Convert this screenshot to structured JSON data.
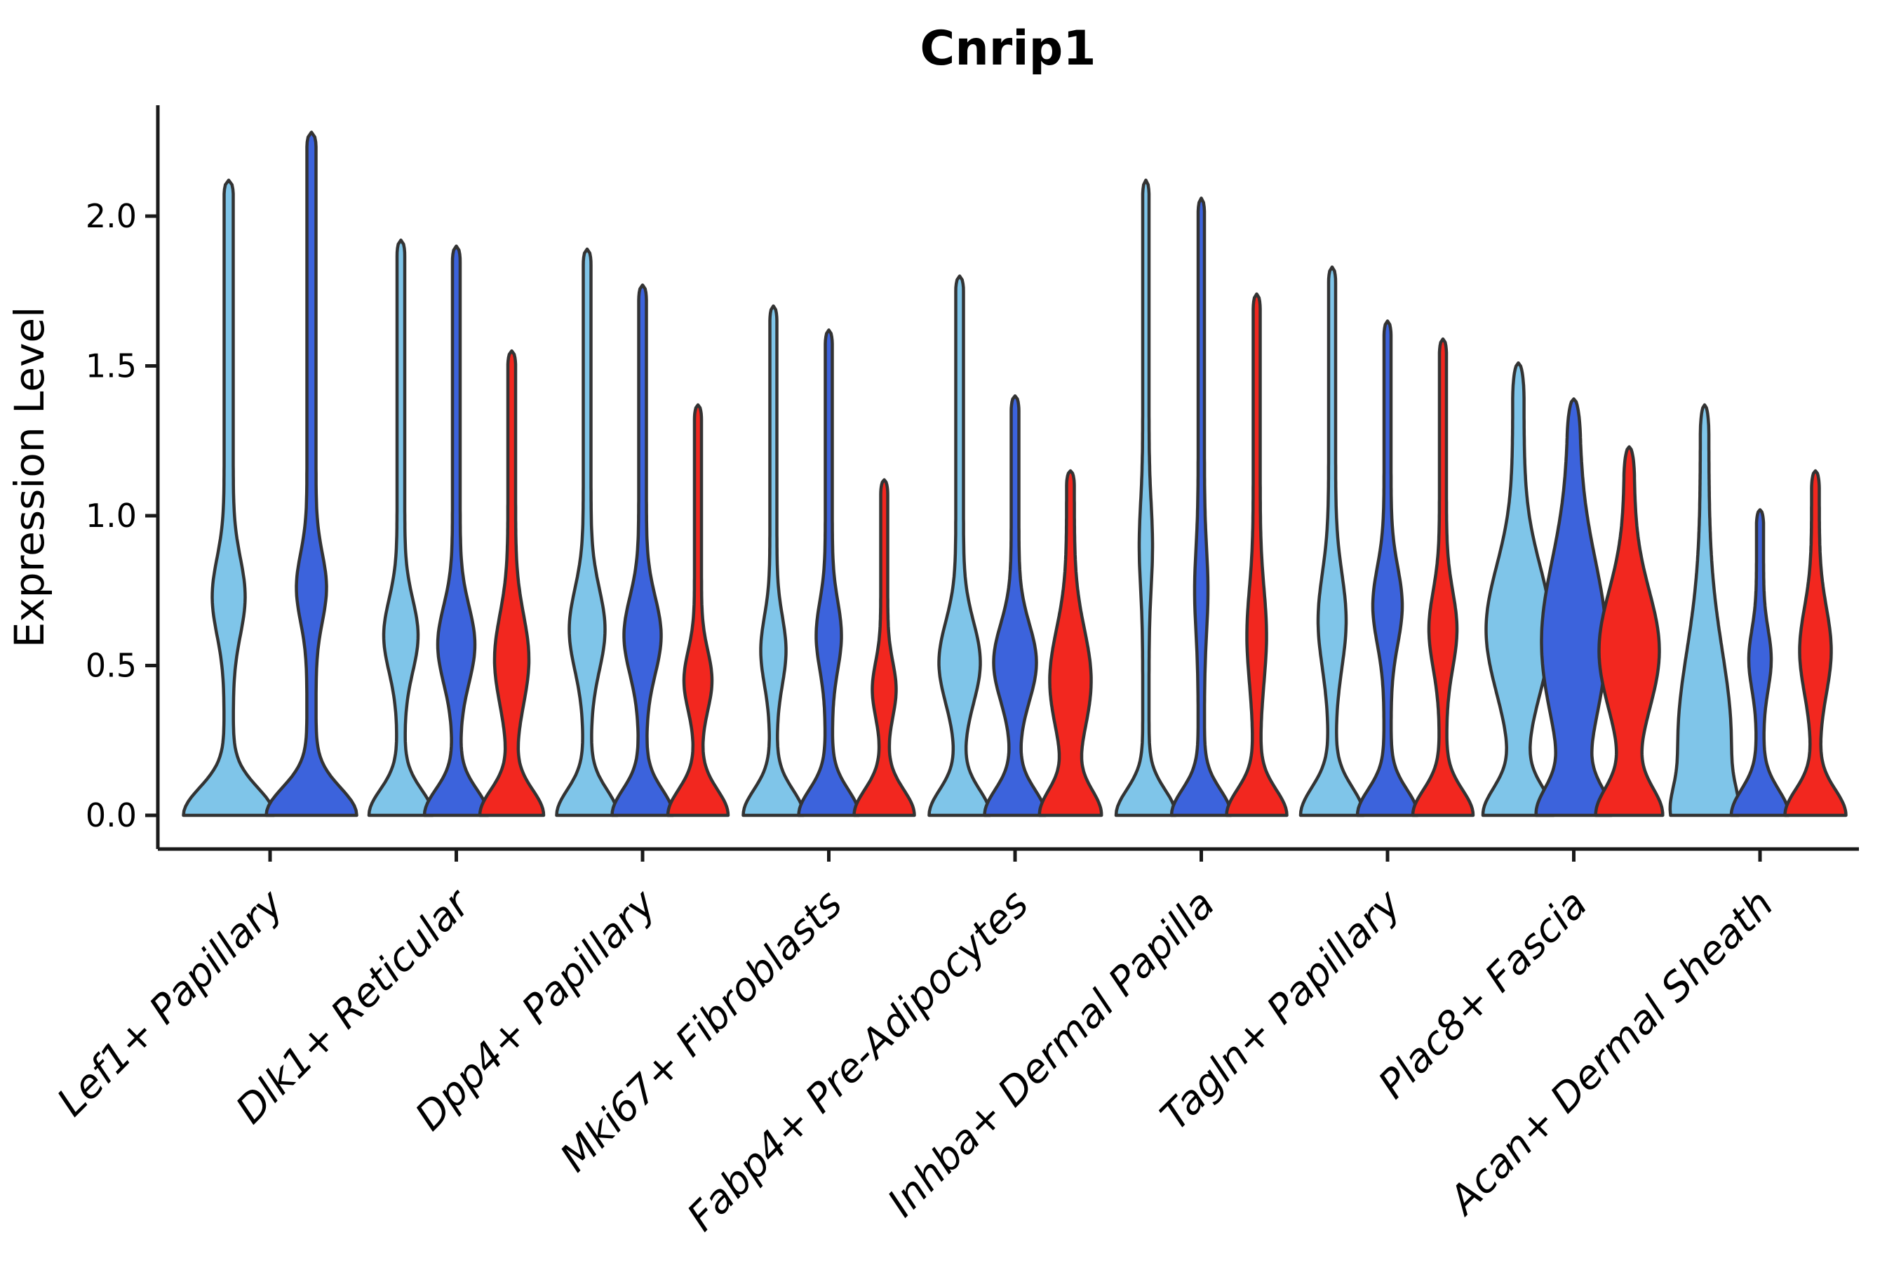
{
  "title": "Cnrip1",
  "axes": {
    "y_label": "Expression Level",
    "y_tick_labels": [
      "0.0",
      "0.5",
      "1.0",
      "1.5",
      "2.0"
    ],
    "y_tick_values": [
      0.0,
      0.5,
      1.0,
      1.5,
      2.0
    ],
    "x_tick_labels": [
      "Lef1+ Papillary",
      "Dlk1+ Reticular",
      "Dpp4+ Papillary",
      "Mki67+ Fibroblasts",
      "Fabp4+ Pre-Adipocytes",
      "Inhba+ Dermal Papilla",
      "Tagln+ Papillary",
      "Plac8+ Fascia",
      "Acan+ Dermal Sheath"
    ]
  },
  "palette": {
    "light_blue": "#7FC5E9",
    "dark_blue": "#3C63DC",
    "red": "#F2271F",
    "violin_edge": "#333333",
    "spine": "#1a1a1a",
    "background": "#ffffff"
  },
  "chart_data": {
    "type": "violin",
    "title": "Cnrip1",
    "xlabel": "",
    "ylabel": "Expression Level",
    "ylim": [
      0,
      2.37
    ],
    "yticks": [
      0.0,
      0.5,
      1.0,
      1.5,
      2.0
    ],
    "grid": false,
    "legend_position": "none",
    "series_colors": {
      "light_blue": "#7FC5E9",
      "dark_blue": "#3C63DC",
      "red": "#F2271F"
    },
    "categories": [
      "Lef1+ Papillary",
      "Dlk1+ Reticular",
      "Dpp4+ Papillary",
      "Mki67+ Fibroblasts",
      "Fabp4+ Pre-Adipocytes",
      "Inhba+ Dermal Papilla",
      "Tagln+ Papillary",
      "Plac8+ Fascia",
      "Acan+ Dermal Sheath"
    ],
    "groups": [
      {
        "label": "Lef1+ Papillary",
        "violins": [
          {
            "color": "light_blue",
            "max": 2.12,
            "bulge_center": 0.73,
            "bulge_sigma": 0.18,
            "bulge_halfwidth": 17,
            "base_halfwidth": 58,
            "base_sigma": 0.13,
            "stem_halfwidth": 6.5,
            "tip": 0.05
          },
          {
            "color": "dark_blue",
            "max": 2.28,
            "bulge_center": 0.76,
            "bulge_sigma": 0.16,
            "bulge_halfwidth": 15,
            "base_halfwidth": 58,
            "base_sigma": 0.13,
            "stem_halfwidth": 6.5,
            "tip": 0.05
          }
        ]
      },
      {
        "label": "Dlk1+ Reticular",
        "violins": [
          {
            "color": "light_blue",
            "max": 1.92,
            "bulge_center": 0.6,
            "bulge_sigma": 0.17,
            "bulge_halfwidth": 19,
            "base_halfwidth": 40,
            "base_sigma": 0.12,
            "stem_halfwidth": 5.5,
            "tip": 0.05
          },
          {
            "color": "dark_blue",
            "max": 1.9,
            "bulge_center": 0.57,
            "bulge_sigma": 0.18,
            "bulge_halfwidth": 21,
            "base_halfwidth": 40,
            "base_sigma": 0.12,
            "stem_halfwidth": 5.5,
            "tip": 0.05
          },
          {
            "color": "red",
            "max": 1.55,
            "bulge_center": 0.52,
            "bulge_sigma": 0.21,
            "bulge_halfwidth": 19,
            "base_halfwidth": 40,
            "base_sigma": 0.12,
            "stem_halfwidth": 5.5,
            "tip": 0.05
          }
        ]
      },
      {
        "label": "Dpp4+ Papillary",
        "violins": [
          {
            "color": "light_blue",
            "max": 1.89,
            "bulge_center": 0.62,
            "bulge_sigma": 0.19,
            "bulge_halfwidth": 20,
            "base_halfwidth": 38,
            "base_sigma": 0.12,
            "stem_halfwidth": 5.5,
            "tip": 0.05
          },
          {
            "color": "dark_blue",
            "max": 1.77,
            "bulge_center": 0.6,
            "bulge_sigma": 0.18,
            "bulge_halfwidth": 21,
            "base_halfwidth": 38,
            "base_sigma": 0.12,
            "stem_halfwidth": 5.5,
            "tip": 0.05
          },
          {
            "color": "red",
            "max": 1.37,
            "bulge_center": 0.45,
            "bulge_sigma": 0.14,
            "bulge_halfwidth": 15,
            "base_halfwidth": 38,
            "base_sigma": 0.12,
            "stem_halfwidth": 5.0,
            "tip": 0.05
          }
        ]
      },
      {
        "label": "Mki67+ Fibroblasts",
        "violins": [
          {
            "color": "light_blue",
            "max": 1.7,
            "bulge_center": 0.55,
            "bulge_sigma": 0.16,
            "bulge_halfwidth": 13,
            "base_halfwidth": 38,
            "base_sigma": 0.12,
            "stem_halfwidth": 5.0,
            "tip": 0.05
          },
          {
            "color": "dark_blue",
            "max": 1.62,
            "bulge_center": 0.6,
            "bulge_sigma": 0.16,
            "bulge_halfwidth": 13,
            "base_halfwidth": 38,
            "base_sigma": 0.12,
            "stem_halfwidth": 5.0,
            "tip": 0.05
          },
          {
            "color": "red",
            "max": 1.12,
            "bulge_center": 0.42,
            "bulge_sigma": 0.13,
            "bulge_halfwidth": 12,
            "base_halfwidth": 38,
            "base_sigma": 0.12,
            "stem_halfwidth": 5.0,
            "tip": 0.05
          }
        ]
      },
      {
        "label": "Fabp4+ Pre-Adipocytes",
        "violins": [
          {
            "color": "light_blue",
            "max": 1.8,
            "bulge_center": 0.51,
            "bulge_sigma": 0.19,
            "bulge_halfwidth": 24,
            "base_halfwidth": 38,
            "base_sigma": 0.12,
            "stem_halfwidth": 5.5,
            "tip": 0.05
          },
          {
            "color": "dark_blue",
            "max": 1.4,
            "bulge_center": 0.51,
            "bulge_sigma": 0.18,
            "bulge_halfwidth": 25,
            "base_halfwidth": 38,
            "base_sigma": 0.12,
            "stem_halfwidth": 5.5,
            "tip": 0.05
          },
          {
            "color": "red",
            "max": 1.15,
            "bulge_center": 0.45,
            "bulge_sigma": 0.24,
            "bulge_halfwidth": 24,
            "base_halfwidth": 38,
            "base_sigma": 0.12,
            "stem_halfwidth": 5.5,
            "tip": 0.05
          }
        ]
      },
      {
        "label": "Inhba+ Dermal Papilla",
        "violins": [
          {
            "color": "light_blue",
            "max": 2.12,
            "bulge_center": 0.9,
            "bulge_sigma": 0.2,
            "bulge_halfwidth": 5,
            "base_halfwidth": 38,
            "base_sigma": 0.12,
            "stem_halfwidth": 4.5,
            "tip": 0.05
          },
          {
            "color": "dark_blue",
            "max": 2.06,
            "bulge_center": 0.75,
            "bulge_sigma": 0.2,
            "bulge_halfwidth": 5,
            "base_halfwidth": 38,
            "base_sigma": 0.12,
            "stem_halfwidth": 4.5,
            "tip": 0.05
          },
          {
            "color": "red",
            "max": 1.74,
            "bulge_center": 0.6,
            "bulge_sigma": 0.22,
            "bulge_halfwidth": 9,
            "base_halfwidth": 38,
            "base_sigma": 0.12,
            "stem_halfwidth": 5.0,
            "tip": 0.05
          }
        ]
      },
      {
        "label": "Tagln+ Papillary",
        "violins": [
          {
            "color": "light_blue",
            "max": 1.83,
            "bulge_center": 0.65,
            "bulge_sigma": 0.22,
            "bulge_halfwidth": 15,
            "base_halfwidth": 40,
            "base_sigma": 0.13,
            "stem_halfwidth": 5.0,
            "tip": 0.05
          },
          {
            "color": "dark_blue",
            "max": 1.65,
            "bulge_center": 0.7,
            "bulge_sigma": 0.18,
            "bulge_halfwidth": 16,
            "base_halfwidth": 38,
            "base_sigma": 0.12,
            "stem_halfwidth": 5.0,
            "tip": 0.05
          },
          {
            "color": "red",
            "max": 1.59,
            "bulge_center": 0.62,
            "bulge_sigma": 0.18,
            "bulge_halfwidth": 15,
            "base_halfwidth": 38,
            "base_sigma": 0.12,
            "stem_halfwidth": 5.0,
            "tip": 0.05
          }
        ]
      },
      {
        "label": "Plac8+ Fascia",
        "violins": [
          {
            "color": "light_blue",
            "max": 1.51,
            "bulge_center": 0.62,
            "bulge_sigma": 0.3,
            "bulge_halfwidth": 38,
            "base_halfwidth": 42,
            "base_sigma": 0.13,
            "stem_halfwidth": 8.0,
            "tip": 0.12
          },
          {
            "color": "dark_blue",
            "max": 1.39,
            "bulge_center": 0.58,
            "bulge_sigma": 0.38,
            "bulge_halfwidth": 38,
            "base_halfwidth": 42,
            "base_sigma": 0.13,
            "stem_halfwidth": 8.0,
            "tip": 0.12
          },
          {
            "color": "red",
            "max": 1.23,
            "bulge_center": 0.55,
            "bulge_sigma": 0.28,
            "bulge_halfwidth": 36,
            "base_halfwidth": 40,
            "base_sigma": 0.13,
            "stem_halfwidth": 7.0,
            "tip": 0.1
          }
        ]
      },
      {
        "label": "Acan+ Dermal Sheath",
        "violins": [
          {
            "color": "light_blue",
            "max": 1.37,
            "bulge_center": 0.25,
            "bulge_sigma": 0.42,
            "bulge_halfwidth": 32,
            "base_halfwidth": 20,
            "base_sigma": 0.12,
            "stem_halfwidth": 6.0,
            "tip": 0.1
          },
          {
            "color": "dark_blue",
            "max": 1.02,
            "bulge_center": 0.52,
            "bulge_sigma": 0.14,
            "bulge_halfwidth": 11,
            "base_halfwidth": 36,
            "base_sigma": 0.12,
            "stem_halfwidth": 5.0,
            "tip": 0.05
          },
          {
            "color": "red",
            "max": 1.15,
            "bulge_center": 0.55,
            "bulge_sigma": 0.2,
            "bulge_halfwidth": 17,
            "base_halfwidth": 38,
            "base_sigma": 0.12,
            "stem_halfwidth": 5.5,
            "tip": 0.06
          }
        ]
      }
    ]
  }
}
